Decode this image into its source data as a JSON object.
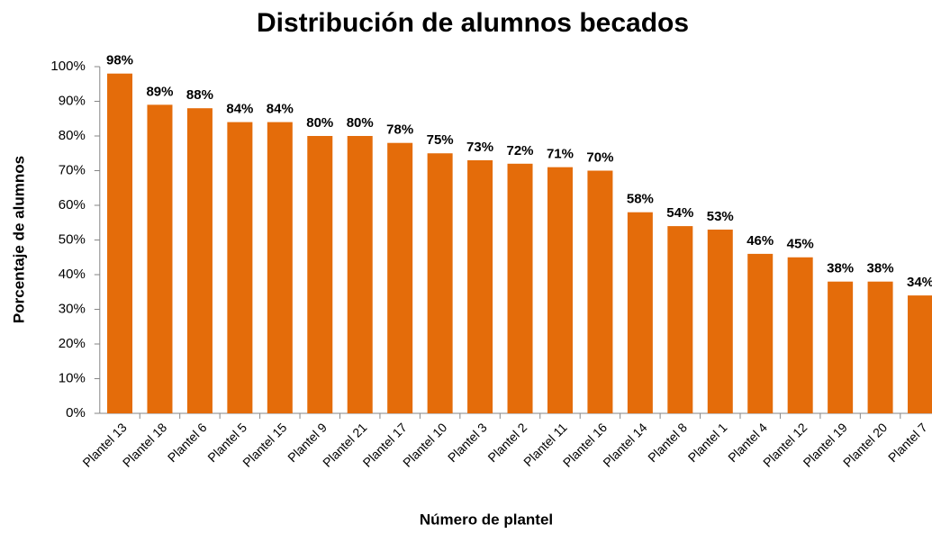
{
  "chart_data": {
    "type": "bar",
    "title": "Distribución de alumnos becados",
    "x_label": "Número de plantel",
    "y_label": "Porcentaje de alumnos",
    "categories": [
      "Plantel 13",
      "Plantel 18",
      "Plantel 6",
      "Plantel 5",
      "Plantel 15",
      "Plantel 9",
      "Plantel 21",
      "Plantel 17",
      "Plantel 10",
      "Plantel 3",
      "Plantel 2",
      "Plantel 11",
      "Plantel 16",
      "Plantel 14",
      "Plantel 8",
      "Plantel 1",
      "Plantel 4",
      "Plantel 12",
      "Plantel 19",
      "Plantel 20",
      "Plantel 7"
    ],
    "values": [
      98,
      89,
      88,
      84,
      84,
      80,
      80,
      78,
      75,
      73,
      72,
      71,
      70,
      58,
      54,
      53,
      46,
      45,
      38,
      38,
      34
    ],
    "value_labels": [
      "98%",
      "89%",
      "88%",
      "84%",
      "84%",
      "80%",
      "80%",
      "78%",
      "75%",
      "73%",
      "72%",
      "71%",
      "70%",
      "58%",
      "54%",
      "53%",
      "46%",
      "45%",
      "38%",
      "38%",
      "34%"
    ],
    "color": "#e46c0a",
    "ylim": [
      0,
      100
    ],
    "yticks": [
      {
        "value": 0,
        "label": "0%"
      },
      {
        "value": 10,
        "label": "10%"
      },
      {
        "value": 20,
        "label": "20%"
      },
      {
        "value": 30,
        "label": "30%"
      },
      {
        "value": 40,
        "label": "40%"
      },
      {
        "value": 50,
        "label": "50%"
      },
      {
        "value": 60,
        "label": "60%"
      },
      {
        "value": 70,
        "label": "70%"
      },
      {
        "value": 80,
        "label": "80%"
      },
      {
        "value": 90,
        "label": "90%"
      },
      {
        "value": 100,
        "label": "100%"
      }
    ],
    "grid": false
  }
}
